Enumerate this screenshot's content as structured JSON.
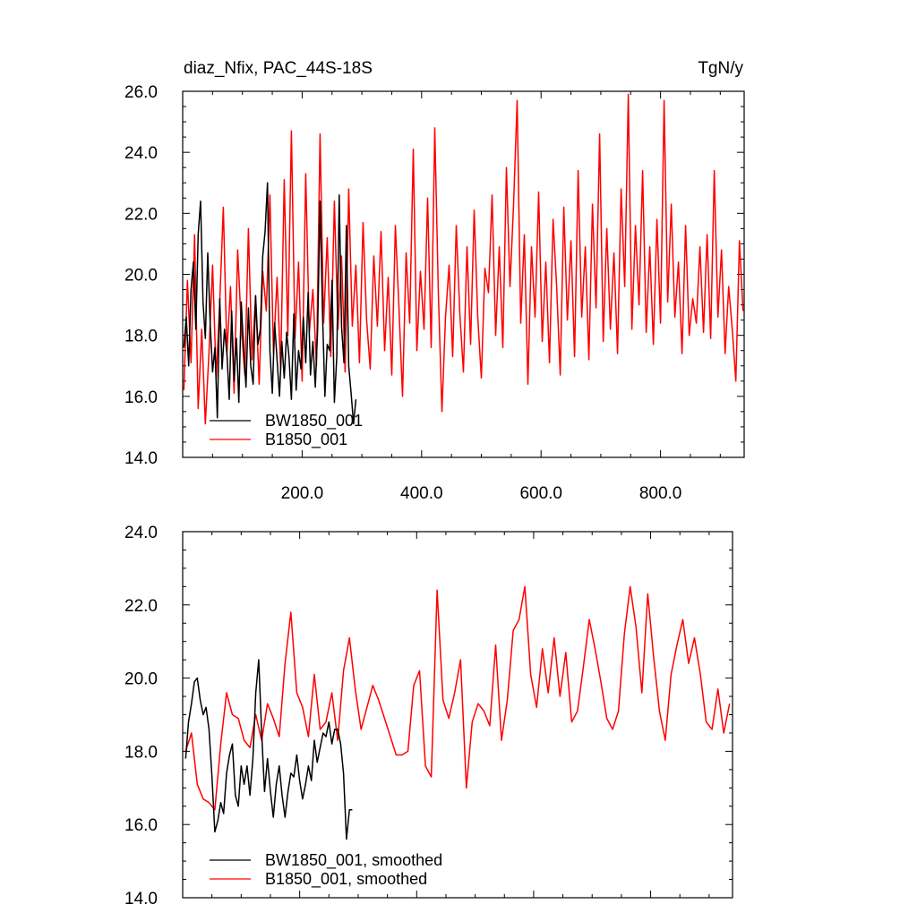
{
  "chart_data": [
    {
      "type": "line",
      "title": "diaz_Nfix, PAC_44S-18S",
      "units": "TgN/y",
      "xlim": [
        0,
        940
      ],
      "ylim": [
        14,
        26
      ],
      "y_ticks": [
        "14.0",
        "16.0",
        "18.0",
        "20.0",
        "22.0",
        "24.0",
        "26.0"
      ],
      "x_ticks": [
        "200.0",
        "400.0",
        "600.0",
        "800.0"
      ],
      "legend_position": "lower-left",
      "series": [
        {
          "name": "BW1850_001",
          "color": "#000000",
          "x": [
            2,
            6,
            10,
            14,
            18,
            22,
            26,
            30,
            34,
            38,
            42,
            46,
            50,
            54,
            58,
            62,
            66,
            70,
            74,
            78,
            82,
            86,
            90,
            94,
            98,
            102,
            106,
            110,
            114,
            118,
            122,
            126,
            130,
            134,
            138,
            142,
            146,
            150,
            154,
            158,
            162,
            166,
            170,
            174,
            178,
            182,
            186,
            190,
            194,
            198,
            202,
            206,
            210,
            214,
            218,
            222,
            226,
            230,
            234,
            238,
            242,
            246,
            250,
            254,
            258,
            262,
            266,
            270,
            274,
            278,
            282,
            286,
            290
          ],
          "values": [
            17.6,
            18.6,
            17.0,
            19.5,
            20.4,
            18.2,
            21.3,
            22.4,
            19.1,
            17.9,
            20.7,
            18.4,
            16.8,
            17.6,
            15.3,
            19.2,
            16.9,
            18.2,
            17.4,
            15.9,
            18.8,
            16.5,
            17.9,
            15.8,
            19.1,
            17.6,
            16.3,
            18.9,
            17.0,
            16.4,
            19.3,
            17.7,
            18.2,
            20.6,
            21.4,
            23.0,
            17.5,
            16.1,
            18.4,
            17.2,
            16.0,
            17.8,
            16.6,
            18.1,
            17.3,
            15.9,
            18.7,
            16.2,
            17.5,
            16.9,
            18.6,
            17.1,
            19.4,
            16.7,
            17.8,
            16.3,
            18.2,
            22.4,
            18.8,
            16.0,
            17.7,
            17.5,
            19.8,
            15.8,
            17.3,
            22.6,
            18.3,
            17.1,
            21.6,
            17.0,
            16.1,
            15.1,
            15.9
          ]
        },
        {
          "name": "B1850_001",
          "color": "#ff0000",
          "x": [
            2,
            8,
            14,
            20,
            26,
            32,
            38,
            44,
            50,
            56,
            62,
            68,
            74,
            80,
            86,
            92,
            98,
            104,
            110,
            116,
            122,
            128,
            134,
            140,
            146,
            152,
            158,
            164,
            170,
            176,
            182,
            188,
            194,
            200,
            206,
            212,
            218,
            224,
            230,
            236,
            242,
            248,
            254,
            260,
            266,
            272,
            278,
            284,
            290,
            296,
            302,
            308,
            314,
            320,
            326,
            332,
            338,
            344,
            350,
            356,
            362,
            368,
            374,
            380,
            386,
            392,
            398,
            404,
            410,
            416,
            422,
            428,
            434,
            440,
            446,
            452,
            458,
            464,
            470,
            476,
            482,
            488,
            494,
            500,
            506,
            512,
            518,
            524,
            530,
            536,
            542,
            548,
            554,
            560,
            566,
            572,
            578,
            584,
            590,
            596,
            602,
            608,
            614,
            620,
            626,
            632,
            638,
            644,
            650,
            656,
            662,
            668,
            674,
            680,
            686,
            692,
            698,
            704,
            710,
            716,
            722,
            728,
            734,
            740,
            746,
            752,
            758,
            764,
            770,
            776,
            782,
            788,
            794,
            800,
            806,
            812,
            818,
            824,
            830,
            836,
            842,
            848,
            854,
            860,
            866,
            872,
            878,
            884,
            890,
            896,
            902,
            908,
            914,
            920,
            926,
            932,
            938
          ],
          "values": [
            16.2,
            19.8,
            17.1,
            21.3,
            15.6,
            18.2,
            15.1,
            17.4,
            20.3,
            16.6,
            19.1,
            22.2,
            17.4,
            19.6,
            16.1,
            20.8,
            18.3,
            16.7,
            21.5,
            17.2,
            19.3,
            16.4,
            20.1,
            18.8,
            22.6,
            17.4,
            19.9,
            16.9,
            23.1,
            18.0,
            24.7,
            17.9,
            20.4,
            16.5,
            23.3,
            18.1,
            19.5,
            17.0,
            24.6,
            18.4,
            21.2,
            17.3,
            22.4,
            18.2,
            20.6,
            16.8,
            22.8,
            18.3,
            20.3,
            17.1,
            21.7,
            18.5,
            16.9,
            20.6,
            18.3,
            21.4,
            17.5,
            19.9,
            16.7,
            21.6,
            18.9,
            16.0,
            20.7,
            18.4,
            24.1,
            17.5,
            20.1,
            18.2,
            22.5,
            17.6,
            24.8,
            19.4,
            15.5,
            18.6,
            20.3,
            17.3,
            21.6,
            18.7,
            16.8,
            20.9,
            17.7,
            22.1,
            18.6,
            16.6,
            20.2,
            19.4,
            22.6,
            18.0,
            20.9,
            17.6,
            23.5,
            19.6,
            22.3,
            25.7,
            18.4,
            21.3,
            16.4,
            20.9,
            18.6,
            22.7,
            17.8,
            20.4,
            17.1,
            21.8,
            19.6,
            16.7,
            22.2,
            18.5,
            21.1,
            17.3,
            23.4,
            18.6,
            20.9,
            17.2,
            22.3,
            18.9,
            24.6,
            17.8,
            21.5,
            18.2,
            20.7,
            17.4,
            22.8,
            19.6,
            25.9,
            18.2,
            21.6,
            19.0,
            23.4,
            18.1,
            20.9,
            17.7,
            21.8,
            18.4,
            25.7,
            19.1,
            22.3,
            18.6,
            20.4,
            17.4,
            21.6,
            18.0,
            19.2,
            18.4,
            20.9,
            18.1,
            21.3,
            17.9,
            23.4,
            18.6,
            20.8,
            17.4,
            19.6,
            18.2,
            16.5,
            21.1,
            18.8
          ]
        }
      ]
    },
    {
      "type": "line",
      "title": "",
      "xlim": [
        0,
        940
      ],
      "ylim": [
        14,
        24
      ],
      "y_ticks": [
        "14.0",
        "16.0",
        "18.0",
        "20.0",
        "22.0",
        "24.0"
      ],
      "legend_position": "lower-left",
      "series": [
        {
          "name": "BW1850_001, smoothed",
          "color": "#000000",
          "x": [
            5,
            10,
            15,
            20,
            25,
            30,
            35,
            40,
            45,
            50,
            55,
            60,
            65,
            70,
            75,
            80,
            85,
            90,
            95,
            100,
            105,
            110,
            115,
            120,
            125,
            130,
            135,
            140,
            145,
            150,
            155,
            160,
            165,
            170,
            175,
            180,
            185,
            190,
            195,
            200,
            205,
            210,
            215,
            220,
            225,
            230,
            235,
            240,
            245,
            250,
            255,
            260,
            265,
            270,
            275,
            280,
            285,
            290
          ],
          "values": [
            17.8,
            18.8,
            19.3,
            19.9,
            20.0,
            19.4,
            19.0,
            19.2,
            18.6,
            17.3,
            15.8,
            16.1,
            16.6,
            16.3,
            17.4,
            17.9,
            18.2,
            16.8,
            16.5,
            17.6,
            17.1,
            17.6,
            16.8,
            17.8,
            19.6,
            20.5,
            18.5,
            16.9,
            17.8,
            16.9,
            16.2,
            17.1,
            17.6,
            16.8,
            16.2,
            16.9,
            17.4,
            17.3,
            17.9,
            17.2,
            16.7,
            17.1,
            17.6,
            17.2,
            18.3,
            17.7,
            18.1,
            18.5,
            18.4,
            18.8,
            18.2,
            18.6,
            18.6,
            18.2,
            17.4,
            15.6,
            16.4,
            16.4
          ]
        },
        {
          "name": "B1850_001, smoothed",
          "color": "#ff0000",
          "x": [
            5,
            15,
            25,
            35,
            45,
            55,
            65,
            75,
            85,
            95,
            105,
            115,
            125,
            135,
            145,
            155,
            165,
            175,
            185,
            195,
            205,
            215,
            225,
            235,
            245,
            255,
            265,
            275,
            285,
            295,
            305,
            315,
            325,
            335,
            345,
            355,
            365,
            375,
            385,
            395,
            405,
            415,
            425,
            435,
            445,
            455,
            465,
            475,
            485,
            495,
            505,
            515,
            525,
            535,
            545,
            555,
            565,
            575,
            585,
            595,
            605,
            615,
            625,
            635,
            645,
            655,
            665,
            675,
            685,
            695,
            705,
            715,
            725,
            735,
            745,
            755,
            765,
            775,
            785,
            795,
            805,
            815,
            825,
            835,
            845,
            855,
            865,
            875,
            885,
            895,
            905,
            915,
            925,
            935
          ],
          "values": [
            18.0,
            18.5,
            17.1,
            16.7,
            16.6,
            16.4,
            18.2,
            19.6,
            19.0,
            18.9,
            18.3,
            18.1,
            19.0,
            18.3,
            19.3,
            18.9,
            18.4,
            20.4,
            21.8,
            19.6,
            19.2,
            18.4,
            20.1,
            18.6,
            18.8,
            19.6,
            18.3,
            20.2,
            21.1,
            19.7,
            18.6,
            19.2,
            19.8,
            19.4,
            18.9,
            18.4,
            17.9,
            17.9,
            18.0,
            19.8,
            20.2,
            17.6,
            17.3,
            22.4,
            19.4,
            18.9,
            19.6,
            20.5,
            17.0,
            18.8,
            19.3,
            19.1,
            18.7,
            20.9,
            18.3,
            19.4,
            21.3,
            21.6,
            22.5,
            20.1,
            19.2,
            20.8,
            19.6,
            21.1,
            19.5,
            20.7,
            18.8,
            19.1,
            20.3,
            21.6,
            20.8,
            19.9,
            18.9,
            18.6,
            19.1,
            21.2,
            22.5,
            21.4,
            19.6,
            22.3,
            20.6,
            19.1,
            18.3,
            20.1,
            20.9,
            21.6,
            20.4,
            21.1,
            20.1,
            18.8,
            18.6,
            19.7,
            18.5,
            19.3
          ]
        }
      ]
    }
  ]
}
